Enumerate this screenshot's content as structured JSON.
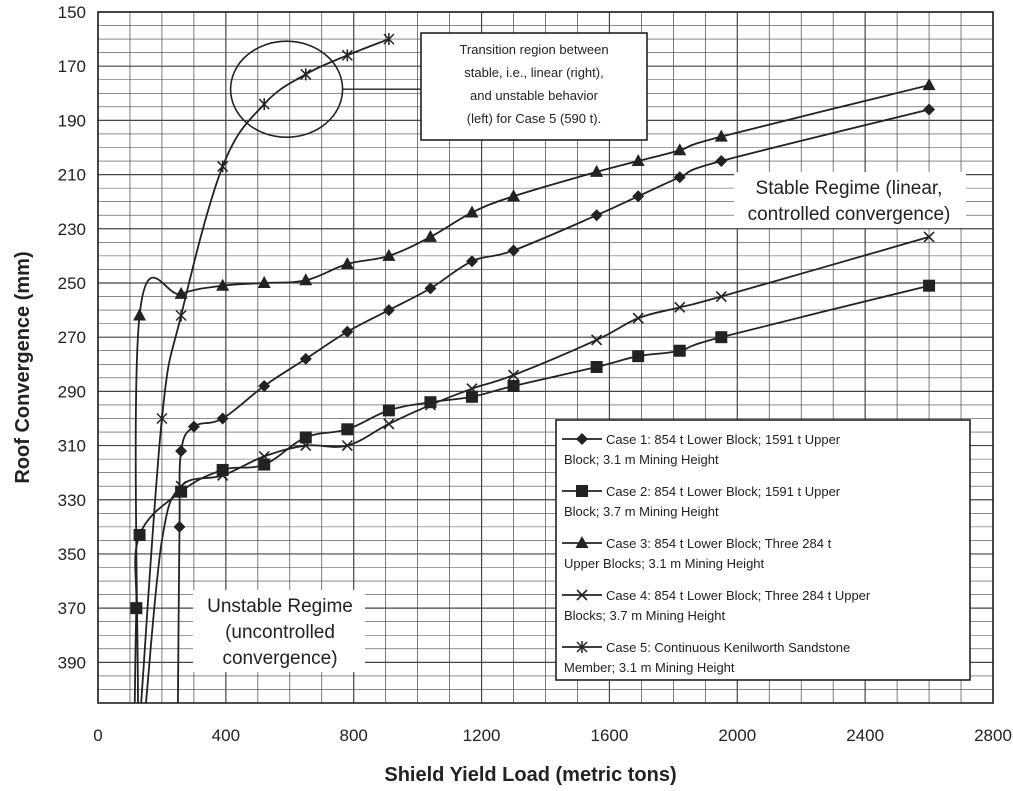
{
  "chart_data": {
    "type": "line",
    "title": "",
    "xlabel": "Shield Yield Load (metric tons)",
    "ylabel": "Roof Convergence (mm)",
    "xlim": [
      0,
      2800
    ],
    "ylim": [
      150,
      405
    ],
    "y_inverted": true,
    "x_major_ticks": [
      0,
      400,
      800,
      1200,
      1600,
      2000,
      2400,
      2800
    ],
    "y_major_ticks": [
      150,
      170,
      190,
      210,
      230,
      250,
      270,
      290,
      310,
      330,
      350,
      370,
      390
    ],
    "grid": true,
    "legend_position": "bottom-right",
    "series": [
      {
        "name": "Case 1: 854 t Lower Block; 1591 t Upper Block; 3.1 m Mining Height",
        "marker": "diamond",
        "x": [
          250,
          255,
          260,
          300,
          390,
          520,
          650,
          780,
          910,
          1040,
          1170,
          1300,
          1560,
          1690,
          1820,
          1950,
          2600
        ],
        "y": [
          405,
          340,
          312,
          303,
          300,
          288,
          278,
          268,
          260,
          252,
          242,
          238,
          225,
          218,
          211,
          205,
          186
        ]
      },
      {
        "name": "Case 2: 854 t Lower Block; 1591 t Upper Block; 3.7 m Mining Height",
        "marker": "square",
        "x": [
          115,
          120,
          130,
          260,
          390,
          520,
          650,
          780,
          910,
          1040,
          1170,
          1300,
          1560,
          1690,
          1820,
          1950,
          2600
        ],
        "y": [
          405,
          370,
          343,
          327,
          319,
          317,
          307,
          304,
          297,
          294,
          292,
          288,
          281,
          277,
          275,
          270,
          251
        ]
      },
      {
        "name": "Case 3: 854 t Lower Block; Three 284 t Upper Blocks; 3.1 m Mining Height",
        "marker": "triangle",
        "x": [
          125,
          130,
          260,
          390,
          520,
          650,
          780,
          910,
          1040,
          1170,
          1300,
          1560,
          1690,
          1820,
          1950,
          2600
        ],
        "y": [
          405,
          262,
          254,
          251,
          250,
          249,
          243,
          240,
          233,
          224,
          218,
          209,
          205,
          201,
          196,
          177
        ]
      },
      {
        "name": "Case 4: 854 t Lower Block; Three 284 t Upper Blocks; 3.7 m Mining Height",
        "marker": "x",
        "x": [
          150,
          200,
          260,
          390,
          520,
          650,
          780,
          910,
          1040,
          1170,
          1300,
          1560,
          1690,
          1820,
          1950,
          2600
        ],
        "y": [
          405,
          345,
          325,
          321,
          314,
          310,
          310,
          302,
          295,
          289,
          284,
          271,
          263,
          259,
          255,
          233
        ]
      },
      {
        "name": "Case 5: Continuous Kenilworth Sandstone Member; 3.1 m Mining Height",
        "marker": "asterisk",
        "x": [
          135,
          200,
          260,
          390,
          520,
          650,
          780,
          910
        ],
        "y": [
          405,
          300,
          262,
          207,
          184,
          173,
          166,
          160
        ]
      }
    ],
    "annotations": [
      {
        "id": "transition",
        "lines": [
          "Transition region between",
          "stable, i.e., linear (right),",
          "and unstable behavior",
          "(left) for Case 5 (590 t)."
        ]
      },
      {
        "id": "stable",
        "lines": [
          "Stable Regime (linear,",
          "controlled convergence)"
        ]
      },
      {
        "id": "unstable",
        "lines": [
          "Unstable Regime",
          "(uncontrolled",
          "convergence)"
        ]
      }
    ],
    "legend_entries": [
      {
        "series": 0,
        "lines": [
          "Case 1:  854 t Lower Block; 1591 t Upper",
          "Block; 3.1 m Mining Height"
        ]
      },
      {
        "series": 1,
        "lines": [
          "Case 2:  854 t Lower Block; 1591 t Upper",
          "Block; 3.7 m Mining Height"
        ]
      },
      {
        "series": 2,
        "lines": [
          "Case 3:  854 t Lower Block;  Three 284 t",
          "Upper Blocks; 3.1 m Mining Height"
        ]
      },
      {
        "series": 3,
        "lines": [
          "Case 4:  854 t Lower Block; Three 284 t Upper",
          "Blocks; 3.7 m Mining Height"
        ]
      },
      {
        "series": 4,
        "lines": [
          "Case 5:  Continuous Kenilworth Sandstone",
          "Member; 3.1 m Mining Height"
        ]
      }
    ]
  }
}
